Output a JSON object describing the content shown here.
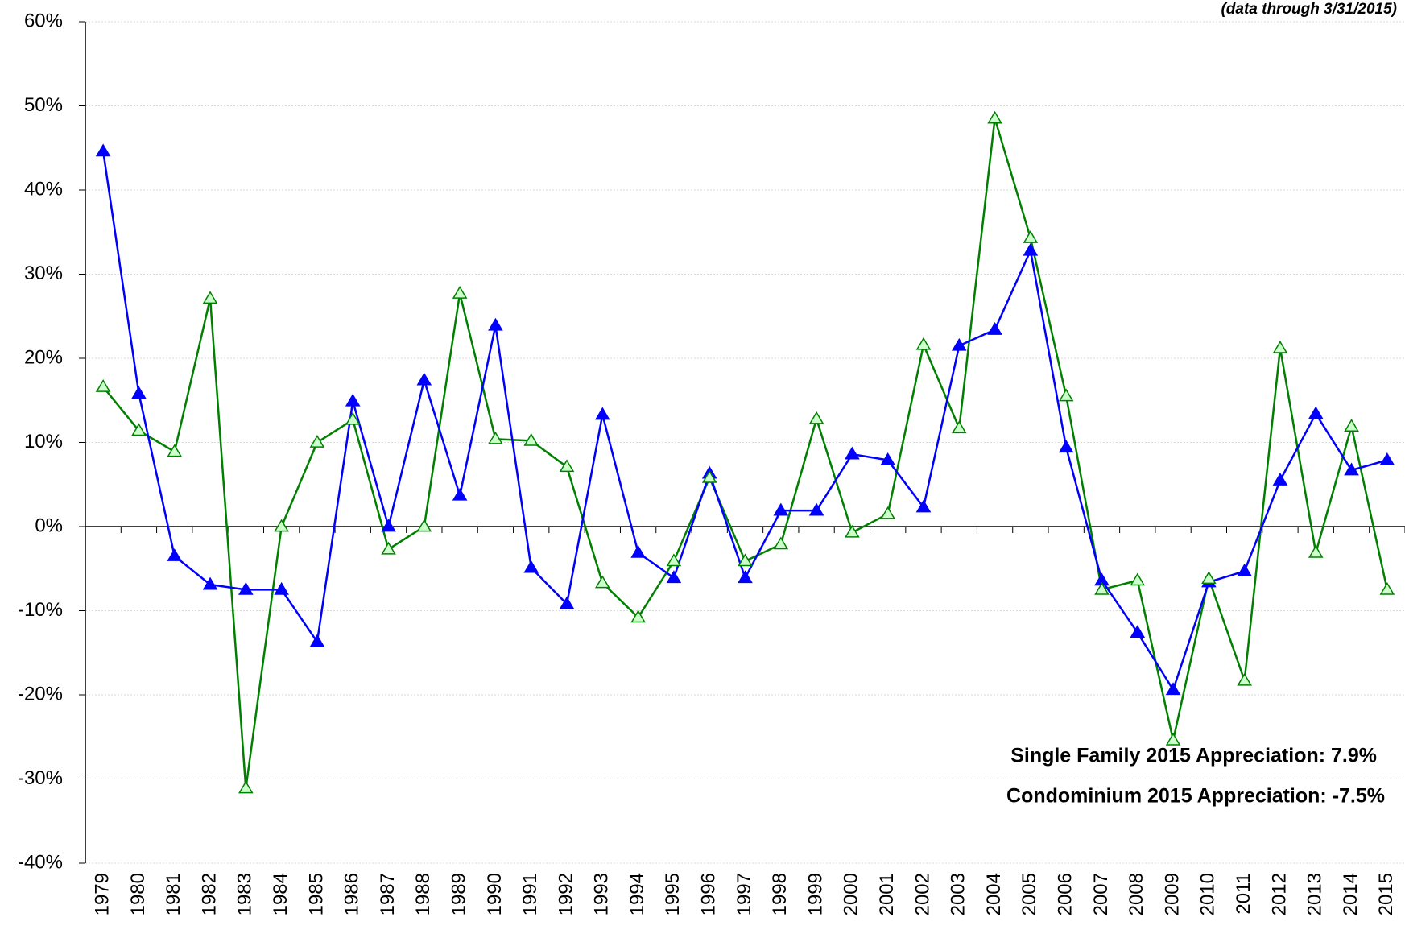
{
  "chart_data": {
    "type": "line",
    "subtitle": "(data through 3/31/2015)",
    "annotations": [
      "Single Family 2015 Appreciation: 7.9%",
      "Condominium 2015 Appreciation: -7.5%"
    ],
    "categories": [
      "1979",
      "1980",
      "1981",
      "1982",
      "1983",
      "1984",
      "1985",
      "1986",
      "1987",
      "1988",
      "1989",
      "1990",
      "1991",
      "1992",
      "1993",
      "1994",
      "1995",
      "1996",
      "1997",
      "1998",
      "1999",
      "2000",
      "2001",
      "2002",
      "2003",
      "2004",
      "2005",
      "2006",
      "2007",
      "2008",
      "2009",
      "2010",
      "2011",
      "2012",
      "2013",
      "2014",
      "2015"
    ],
    "series": [
      {
        "color": "#0000ff",
        "marker": "filled-triangle",
        "values": [
          44.6,
          15.8,
          -3.5,
          -6.9,
          -7.5,
          -7.5,
          -13.7,
          14.9,
          0,
          17.4,
          3.7,
          23.9,
          -4.9,
          -9.2,
          13.3,
          -3.1,
          -6.1,
          6.3,
          -6.1,
          1.9,
          1.9,
          8.6,
          7.9,
          2.3,
          21.5,
          23.4,
          32.8,
          9.4,
          -6.4,
          -12.6,
          -19.4,
          -6.6,
          -5.3,
          5.5,
          13.4,
          6.7,
          7.9
        ]
      },
      {
        "color": "#008000",
        "marker": "open-triangle",
        "values": [
          16.6,
          11.4,
          8.9,
          27.1,
          -31.1,
          0,
          10,
          12.7,
          -2.7,
          0,
          27.7,
          10.4,
          10.2,
          7.1,
          -6.7,
          -10.8,
          -4.1,
          5.8,
          -4.1,
          -2.1,
          12.8,
          -0.7,
          1.5,
          21.6,
          11.7,
          48.5,
          34.3,
          15.5,
          -7.5,
          -6.4,
          -25.4,
          -6.2,
          -18.3,
          21.2,
          -3.1,
          11.9,
          -7.5
        ]
      }
    ],
    "ylim": [
      -40,
      60
    ],
    "yticks": [
      {
        "value": -40,
        "label": "-40%"
      },
      {
        "value": -30,
        "label": "-30%"
      },
      {
        "value": -20,
        "label": "-20%"
      },
      {
        "value": -10,
        "label": "-10%"
      },
      {
        "value": 0,
        "label": "0%"
      },
      {
        "value": 10,
        "label": "10%"
      },
      {
        "value": 20,
        "label": "20%"
      },
      {
        "value": 30,
        "label": "30%"
      },
      {
        "value": 40,
        "label": "40%"
      },
      {
        "value": 50,
        "label": "50%"
      },
      {
        "value": 60,
        "label": "60%"
      }
    ],
    "grid": true
  }
}
